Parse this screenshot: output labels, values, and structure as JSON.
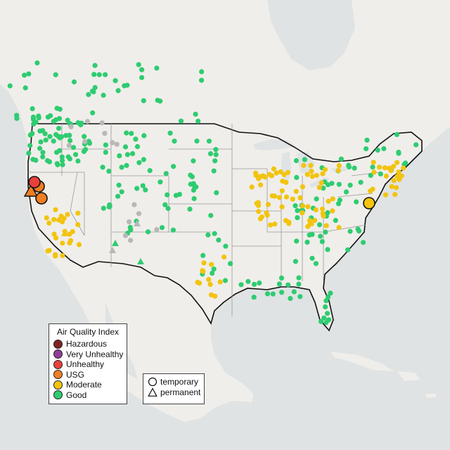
{
  "legend": {
    "title": "Air Quality Index",
    "categories": [
      {
        "label": "Hazardous",
        "color": "#7e2323"
      },
      {
        "label": "Very Unhealthy",
        "color": "#8f3f97"
      },
      {
        "label": "Unhealthy",
        "color": "#e8413c"
      },
      {
        "label": "USG",
        "color": "#f07e22"
      },
      {
        "label": "Moderate",
        "color": "#f2c40f"
      },
      {
        "label": "Good",
        "color": "#2ecc71"
      }
    ]
  },
  "monitor_legend": {
    "temporary": "temporary",
    "permanent": "permanent"
  },
  "colors": {
    "land": "#f0eeea",
    "water": "#dfe3e4",
    "state_border": "#9a9a9a",
    "country_border": "#111111",
    "inactive": "#b8b8b8"
  }
}
